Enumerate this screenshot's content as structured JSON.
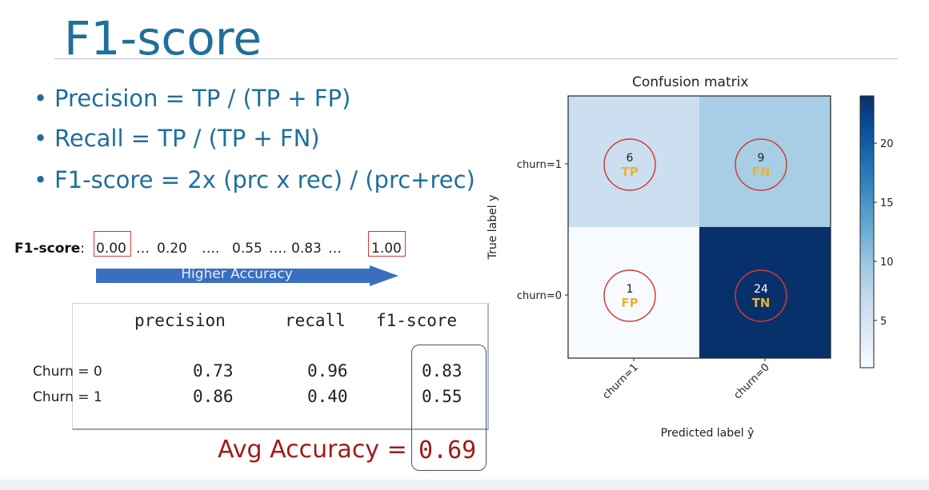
{
  "slide": {
    "title": "F1-score",
    "bullets": [
      "Precision = TP / (TP + FP)",
      "Recall =  TP / (TP + FN)",
      "F1-score = 2x (prc x rec) / (prc+rec)"
    ],
    "bullet_symbol": "•",
    "accent_color": "#1f6f9b"
  },
  "f1_scale": {
    "label": "F1-score",
    "colon": ":",
    "min": "0.00",
    "sep1": "…",
    "v1": "0.20",
    "sep2": "….",
    "v2": "0.55",
    "sep3": "….",
    "v3": "0.83",
    "sep4": "…",
    "max": "1.00",
    "arrow_label": "Higher Accuracy",
    "arrow_color": "#3a6fbf",
    "highlight_color": "#d23a3a"
  },
  "report": {
    "headers": [
      "precision",
      "recall",
      "f1-score"
    ],
    "rows": [
      {
        "label": "Churn = 0",
        "precision": "0.73",
        "recall": "0.96",
        "f1": "0.83"
      },
      {
        "label": "Churn = 1",
        "precision": "0.86",
        "recall": "0.40",
        "f1": "0.55"
      }
    ],
    "avg_label": "Avg Accuracy =",
    "avg_value": "0.69",
    "avg_color": "#a11a1a"
  },
  "chart_data": {
    "type": "heatmap",
    "title": "Confusion matrix",
    "xlabel": "Predicted label ŷ",
    "ylabel": "True label  y",
    "x_categories": [
      "churn=1",
      "churn=0"
    ],
    "y_categories": [
      "churn=1",
      "churn=0"
    ],
    "values": [
      [
        6,
        9
      ],
      [
        1,
        24
      ]
    ],
    "cell_labels": [
      [
        "TP",
        "FN"
      ],
      [
        "FP",
        "TN"
      ]
    ],
    "colormap": "Blues",
    "colorbar": {
      "ticks": [
        5,
        10,
        15,
        20
      ],
      "range": [
        1,
        24
      ]
    },
    "annotation_color": "#e8b33a",
    "circle_color": "#d23a3a"
  }
}
